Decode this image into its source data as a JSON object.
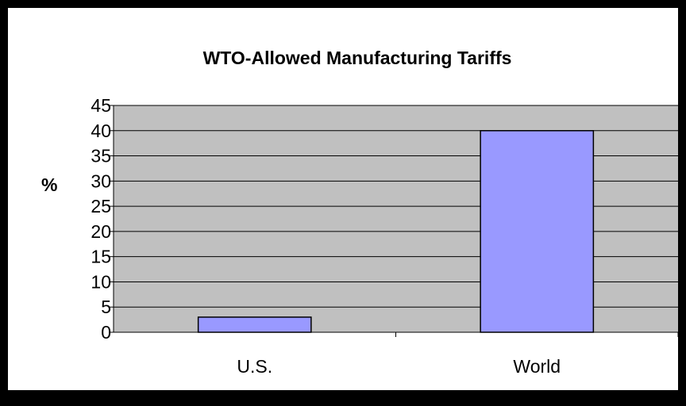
{
  "chart_data": {
    "type": "bar",
    "title": "WTO-Allowed Manufacturing Tariffs",
    "xlabel": "",
    "ylabel": "%",
    "categories": [
      "U.S.",
      "World"
    ],
    "values": [
      3,
      40
    ],
    "ylim": [
      0,
      45
    ],
    "yticks": [
      0,
      5,
      10,
      15,
      20,
      25,
      30,
      35,
      40,
      45
    ],
    "grid": true,
    "legend": "none",
    "colors": {
      "bar": "#9999ff",
      "plot_background": "#c0c0c0",
      "gridline": "#000000",
      "frame_border": "#000000"
    }
  }
}
